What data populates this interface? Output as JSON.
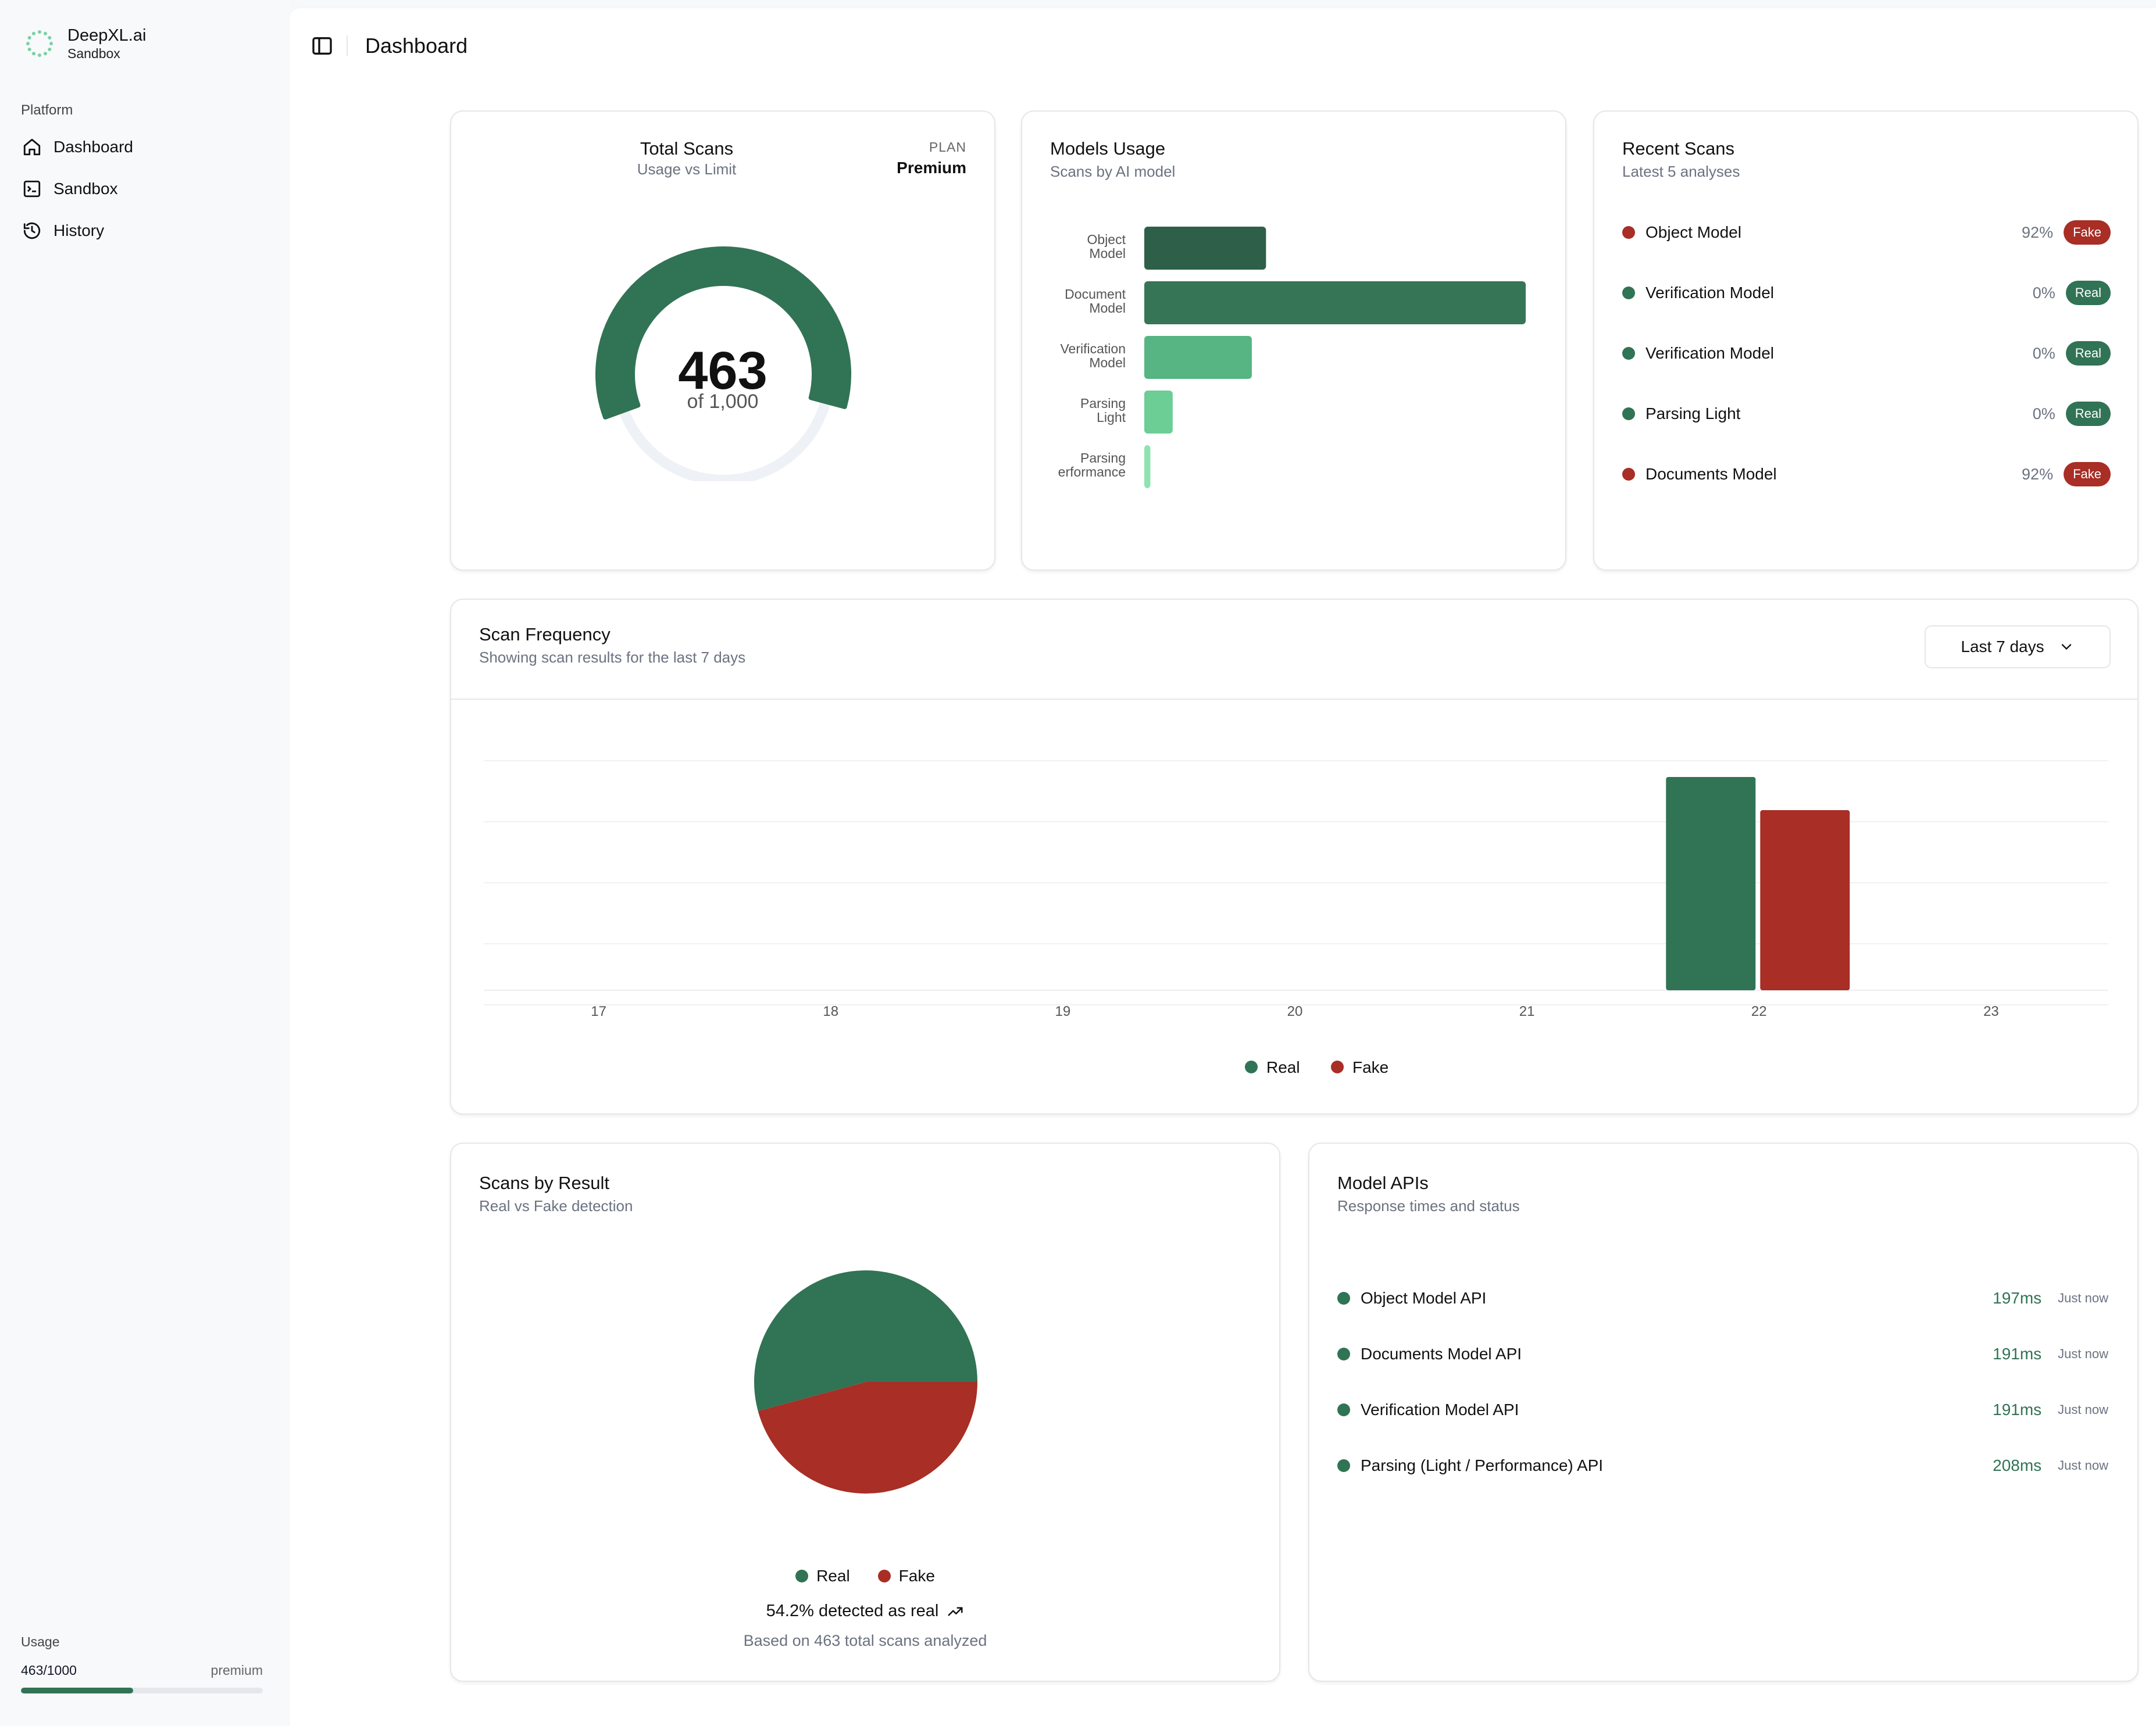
{
  "brand": {
    "name": "DeepXL.ai",
    "sub": "Sandbox"
  },
  "sidebar": {
    "group_label": "Platform",
    "items": [
      {
        "label": "Dashboard",
        "icon": "home-icon"
      },
      {
        "label": "Sandbox",
        "icon": "sandbox-icon"
      },
      {
        "label": "History",
        "icon": "history-icon"
      }
    ],
    "usage": {
      "label": "Usage",
      "value": "463/1000",
      "plan": "premium",
      "fraction": 0.463
    }
  },
  "header": {
    "title": "Dashboard"
  },
  "total_scans": {
    "title": "Total Scans",
    "subtitle": "Usage vs Limit",
    "plan_label": "PLAN",
    "plan_value": "Premium",
    "count": "463",
    "limit_text": "of 1,000",
    "fraction": 0.463
  },
  "models_usage": {
    "title": "Models Usage",
    "subtitle": "Scans by AI model"
  },
  "recent_scans": {
    "title": "Recent Scans",
    "subtitle": "Latest 5 analyses",
    "items": [
      {
        "name": "Object Model",
        "pct": "92%",
        "badge": "Fake",
        "status": "fake"
      },
      {
        "name": "Verification Model",
        "pct": "0%",
        "badge": "Real",
        "status": "real"
      },
      {
        "name": "Verification Model",
        "pct": "0%",
        "badge": "Real",
        "status": "real"
      },
      {
        "name": "Parsing Light",
        "pct": "0%",
        "badge": "Real",
        "status": "real"
      },
      {
        "name": "Documents Model",
        "pct": "92%",
        "badge": "Fake",
        "status": "fake"
      }
    ]
  },
  "scan_frequency": {
    "title": "Scan Frequency",
    "subtitle": "Showing scan results for the last 7 days",
    "range": "Last 7 days"
  },
  "scans_by_result": {
    "title": "Scans by Result",
    "subtitle": "Real vs Fake detection",
    "stat": "54.2% detected as real",
    "note": "Based on 463 total scans analyzed"
  },
  "model_apis": {
    "title": "Model APIs",
    "subtitle": "Response times and status",
    "items": [
      {
        "name": "Object Model API",
        "ms": "197ms",
        "when": "Just now"
      },
      {
        "name": "Documents Model API",
        "ms": "191ms",
        "when": "Just now"
      },
      {
        "name": "Verification Model API",
        "ms": "191ms",
        "when": "Just now"
      },
      {
        "name": "Parsing (Light / Performance) API",
        "ms": "208ms",
        "when": "Just now"
      }
    ]
  },
  "colors": {
    "real": "#317355",
    "fake": "#a82e26",
    "accent": "#317355"
  },
  "chart_data": [
    {
      "type": "bar",
      "orientation": "horizontal",
      "categories": [
        [
          "Object",
          "Model"
        ],
        [
          "Document",
          "Model"
        ],
        [
          "Verification",
          "Model"
        ],
        [
          "Parsing",
          "Light"
        ],
        [
          "Parsing",
          "erformance"
        ]
      ],
      "values": [
        60,
        188,
        53,
        14,
        3
      ],
      "colors": [
        "#2e5f48",
        "#367556",
        "#56b582",
        "#6ccd95",
        "#8ee3b0"
      ],
      "grid": false
    },
    {
      "type": "bar",
      "categories": [
        "17",
        "18",
        "19",
        "20",
        "21",
        "22",
        "23"
      ],
      "series": [
        {
          "name": "Real",
          "values": [
            0,
            0,
            0,
            0,
            0,
            251,
            0
          ],
          "color": "#317355"
        },
        {
          "name": "Fake",
          "values": [
            0,
            0,
            0,
            0,
            0,
            212,
            0
          ],
          "color": "#a82e26"
        }
      ],
      "ylim": [
        0,
        300
      ],
      "grid": true,
      "legend": "bottom-center"
    },
    {
      "type": "pie",
      "series": [
        {
          "name": "Real",
          "value": 54.2,
          "color": "#317355"
        },
        {
          "name": "Fake",
          "value": 45.8,
          "color": "#a82e26"
        }
      ],
      "legend": "bottom-center"
    }
  ]
}
